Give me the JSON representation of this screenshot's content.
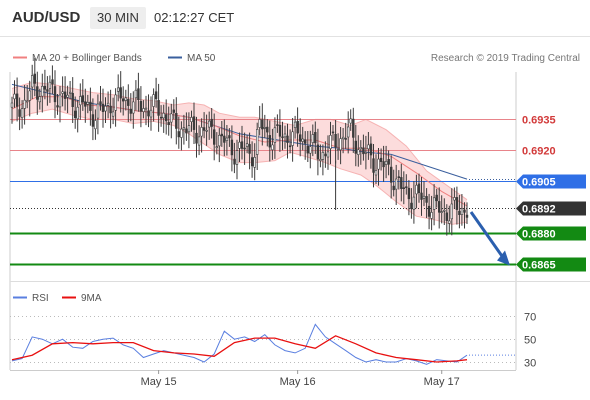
{
  "header": {
    "symbol": "AUD/USD",
    "timeframe": "30 MIN",
    "time": "02:12:27 CET"
  },
  "legend": {
    "ma20_label": "MA 20 + Bollinger Bands",
    "ma50_label": "MA 50",
    "copyright": "Research © 2019 Trading Central",
    "rsi_label": "RSI",
    "rsi_ma_label": "9MA"
  },
  "colors": {
    "candle": "#3a3a3a",
    "ma20": "#f08080",
    "bollinger_fill": "#fcdcdc",
    "ma50": "#3a5f9e",
    "resistance": "#e8848a",
    "current": "#2f6fe6",
    "price_tag": "#333333",
    "support": "#138a13",
    "rsi": "#5a7fe0",
    "rsi_ma": "#e81010",
    "forecast_arrow": "#2b5fae"
  },
  "chart_data": [
    {
      "type": "line",
      "panel": "price",
      "y_range": [
        0.6857,
        0.6958
      ],
      "x_ticks": [
        "May 15",
        "May 16",
        "May 17"
      ],
      "levels": [
        {
          "value": 0.6935,
          "label": "0.6935",
          "kind": "resistance"
        },
        {
          "value": 0.692,
          "label": "0.6920",
          "kind": "resistance"
        },
        {
          "value": 0.6905,
          "label": "0.6905",
          "kind": "pivot"
        },
        {
          "value": 0.6892,
          "label": "0.6892",
          "kind": "last-price"
        },
        {
          "value": 0.688,
          "label": "0.6880",
          "kind": "support"
        },
        {
          "value": 0.6865,
          "label": "0.6865",
          "kind": "support"
        }
      ],
      "price_path": [
        [
          0,
          0.694
        ],
        [
          4,
          0.6942
        ],
        [
          8,
          0.695
        ],
        [
          12,
          0.695
        ],
        [
          16,
          0.6948
        ],
        [
          20,
          0.6946
        ],
        [
          24,
          0.6943
        ],
        [
          28,
          0.6942
        ],
        [
          32,
          0.6938
        ],
        [
          36,
          0.6939
        ],
        [
          40,
          0.6944
        ],
        [
          44,
          0.6945
        ],
        [
          48,
          0.6943
        ],
        [
          52,
          0.6941
        ],
        [
          56,
          0.6941
        ],
        [
          60,
          0.6938
        ],
        [
          64,
          0.6932
        ],
        [
          68,
          0.6931
        ],
        [
          72,
          0.6929
        ],
        [
          76,
          0.693
        ],
        [
          80,
          0.6928
        ],
        [
          84,
          0.6924
        ],
        [
          88,
          0.692
        ],
        [
          92,
          0.692
        ],
        [
          96,
          0.6919
        ],
        [
          98,
          0.6932
        ],
        [
          102,
          0.6927
        ],
        [
          106,
          0.6927
        ],
        [
          110,
          0.6927
        ],
        [
          114,
          0.6927
        ],
        [
          118,
          0.6922
        ],
        [
          122,
          0.6918
        ],
        [
          126,
          0.6922
        ],
        [
          130,
          0.6926
        ],
        [
          134,
          0.6929
        ],
        [
          138,
          0.692
        ],
        [
          142,
          0.6916
        ],
        [
          146,
          0.6913
        ],
        [
          150,
          0.6909
        ],
        [
          154,
          0.6901
        ],
        [
          156,
          0.6899
        ],
        [
          160,
          0.6898
        ],
        [
          164,
          0.6895
        ],
        [
          168,
          0.6891
        ],
        [
          172,
          0.689
        ],
        [
          176,
          0.6891
        ],
        [
          180,
          0.6892
        ]
      ],
      "ma20": [
        [
          0,
          0.694
        ],
        [
          10,
          0.6946
        ],
        [
          20,
          0.6946
        ],
        [
          30,
          0.6942
        ],
        [
          40,
          0.6941
        ],
        [
          50,
          0.6939
        ],
        [
          60,
          0.6938
        ],
        [
          70,
          0.6936
        ],
        [
          80,
          0.6932
        ],
        [
          90,
          0.6927
        ],
        [
          100,
          0.6924
        ],
        [
          110,
          0.6925
        ],
        [
          120,
          0.6925
        ],
        [
          130,
          0.6921
        ],
        [
          140,
          0.6921
        ],
        [
          150,
          0.6917
        ],
        [
          160,
          0.6909
        ],
        [
          170,
          0.69
        ],
        [
          180,
          0.6893
        ]
      ],
      "bollinger_upper": [
        [
          0,
          0.695
        ],
        [
          8,
          0.6953
        ],
        [
          16,
          0.6952
        ],
        [
          24,
          0.695
        ],
        [
          32,
          0.6948
        ],
        [
          40,
          0.6947
        ],
        [
          48,
          0.6945
        ],
        [
          56,
          0.6944
        ],
        [
          64,
          0.6942
        ],
        [
          70,
          0.6943
        ],
        [
          76,
          0.6942
        ],
        [
          82,
          0.6938
        ],
        [
          90,
          0.6936
        ],
        [
          96,
          0.6936
        ],
        [
          104,
          0.6934
        ],
        [
          112,
          0.6932
        ],
        [
          120,
          0.6935
        ],
        [
          126,
          0.6935
        ],
        [
          134,
          0.6932
        ],
        [
          140,
          0.6935
        ],
        [
          148,
          0.693
        ],
        [
          156,
          0.6922
        ],
        [
          164,
          0.691
        ],
        [
          172,
          0.6903
        ],
        [
          180,
          0.6896
        ]
      ],
      "bollinger_lower": [
        [
          0,
          0.6934
        ],
        [
          8,
          0.6938
        ],
        [
          16,
          0.694
        ],
        [
          24,
          0.6937
        ],
        [
          32,
          0.6935
        ],
        [
          40,
          0.6935
        ],
        [
          48,
          0.6933
        ],
        [
          56,
          0.6934
        ],
        [
          64,
          0.6932
        ],
        [
          70,
          0.6928
        ],
        [
          76,
          0.6923
        ],
        [
          82,
          0.6918
        ],
        [
          90,
          0.6914
        ],
        [
          96,
          0.6914
        ],
        [
          104,
          0.6915
        ],
        [
          110,
          0.6919
        ],
        [
          116,
          0.6917
        ],
        [
          124,
          0.6914
        ],
        [
          130,
          0.6911
        ],
        [
          138,
          0.6908
        ],
        [
          144,
          0.6903
        ],
        [
          152,
          0.6895
        ],
        [
          160,
          0.6888
        ],
        [
          168,
          0.6886
        ],
        [
          174,
          0.6884
        ],
        [
          180,
          0.6885
        ]
      ],
      "ma50": [
        [
          0,
          0.6952
        ],
        [
          10,
          0.6949
        ],
        [
          20,
          0.6946
        ],
        [
          30,
          0.6943
        ],
        [
          40,
          0.6941
        ],
        [
          50,
          0.6939
        ],
        [
          60,
          0.6938
        ],
        [
          70,
          0.6936
        ],
        [
          80,
          0.6932
        ],
        [
          90,
          0.6928
        ],
        [
          100,
          0.6926
        ],
        [
          110,
          0.6924
        ],
        [
          120,
          0.6922
        ],
        [
          130,
          0.6921
        ],
        [
          140,
          0.6919
        ],
        [
          150,
          0.6918
        ],
        [
          160,
          0.6914
        ],
        [
          170,
          0.691
        ],
        [
          180,
          0.6906
        ]
      ],
      "forecast_to": 0.6865
    },
    {
      "type": "line",
      "panel": "rsi",
      "y_range": [
        23,
        80
      ],
      "y_ticks": [
        30,
        50,
        70
      ],
      "rsi": [
        [
          0,
          31
        ],
        [
          4,
          33
        ],
        [
          8,
          52
        ],
        [
          12,
          50
        ],
        [
          16,
          46
        ],
        [
          20,
          50
        ],
        [
          24,
          43
        ],
        [
          28,
          42
        ],
        [
          32,
          48
        ],
        [
          36,
          50
        ],
        [
          40,
          51
        ],
        [
          44,
          45
        ],
        [
          48,
          42
        ],
        [
          52,
          34
        ],
        [
          56,
          37
        ],
        [
          60,
          40
        ],
        [
          64,
          38
        ],
        [
          68,
          36
        ],
        [
          72,
          34
        ],
        [
          76,
          30
        ],
        [
          80,
          37
        ],
        [
          84,
          57
        ],
        [
          88,
          50
        ],
        [
          92,
          52
        ],
        [
          96,
          48
        ],
        [
          100,
          54
        ],
        [
          104,
          45
        ],
        [
          108,
          40
        ],
        [
          112,
          38
        ],
        [
          116,
          42
        ],
        [
          120,
          63
        ],
        [
          124,
          52
        ],
        [
          128,
          46
        ],
        [
          132,
          40
        ],
        [
          136,
          34
        ],
        [
          140,
          30
        ],
        [
          144,
          32
        ],
        [
          148,
          30
        ],
        [
          152,
          30
        ],
        [
          156,
          33
        ],
        [
          160,
          31
        ],
        [
          164,
          28
        ],
        [
          168,
          32
        ],
        [
          172,
          31
        ],
        [
          176,
          30
        ],
        [
          180,
          36
        ]
      ],
      "rsi_ma": [
        [
          0,
          32
        ],
        [
          8,
          36
        ],
        [
          16,
          46
        ],
        [
          24,
          47
        ],
        [
          32,
          46
        ],
        [
          40,
          47
        ],
        [
          48,
          47
        ],
        [
          56,
          40
        ],
        [
          64,
          38
        ],
        [
          72,
          37
        ],
        [
          80,
          35
        ],
        [
          88,
          47
        ],
        [
          96,
          51
        ],
        [
          104,
          51
        ],
        [
          112,
          46
        ],
        [
          120,
          42
        ],
        [
          128,
          53
        ],
        [
          136,
          46
        ],
        [
          144,
          38
        ],
        [
          152,
          34
        ],
        [
          160,
          32
        ],
        [
          168,
          30
        ],
        [
          176,
          31
        ],
        [
          180,
          32
        ]
      ]
    }
  ]
}
